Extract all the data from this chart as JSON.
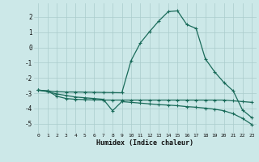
{
  "xlabel": "Humidex (Indice chaleur)",
  "xlim": [
    -0.5,
    23.5
  ],
  "ylim": [
    -5.6,
    2.9
  ],
  "yticks": [
    -5,
    -4,
    -3,
    -2,
    -1,
    0,
    1,
    2
  ],
  "xticks": [
    0,
    1,
    2,
    3,
    4,
    5,
    6,
    7,
    8,
    9,
    10,
    11,
    12,
    13,
    14,
    15,
    16,
    17,
    18,
    19,
    20,
    21,
    22,
    23
  ],
  "bg_color": "#cce8e8",
  "grid_color": "#aacccc",
  "line_color": "#1a6b5a",
  "line1_x": [
    0,
    1,
    2,
    3,
    4,
    5,
    6,
    7,
    8,
    9,
    10,
    11,
    12,
    13,
    14,
    15,
    16,
    17,
    18,
    19,
    20,
    21,
    22,
    23
  ],
  "line1_y": [
    -2.8,
    -2.9,
    -3.05,
    -3.15,
    -3.25,
    -3.3,
    -3.35,
    -3.4,
    -4.15,
    -3.55,
    -3.6,
    -3.65,
    -3.7,
    -3.75,
    -3.78,
    -3.82,
    -3.88,
    -3.92,
    -3.98,
    -4.05,
    -4.15,
    -4.35,
    -4.65,
    -5.05
  ],
  "line2_x": [
    0,
    1,
    2,
    3,
    4,
    5,
    6,
    7,
    8,
    9,
    10,
    11,
    12,
    13,
    14,
    15,
    16,
    17,
    18,
    19,
    20,
    21,
    22,
    23
  ],
  "line2_y": [
    -2.8,
    -2.85,
    -3.2,
    -3.35,
    -3.4,
    -3.42,
    -3.44,
    -3.45,
    -3.45,
    -3.45,
    -3.45,
    -3.45,
    -3.45,
    -3.45,
    -3.45,
    -3.45,
    -3.45,
    -3.45,
    -3.45,
    -3.45,
    -3.45,
    -3.5,
    -3.55,
    -3.6
  ],
  "line3_x": [
    0,
    1,
    2,
    3,
    4,
    5,
    6,
    7,
    8,
    9,
    10,
    11,
    12,
    13,
    14,
    15,
    16,
    17,
    18,
    19,
    20,
    21,
    22,
    23
  ],
  "line3_y": [
    -2.8,
    -2.85,
    -2.9,
    -2.92,
    -2.92,
    -2.93,
    -2.94,
    -2.95,
    -2.96,
    -2.97,
    -0.85,
    0.3,
    1.05,
    1.75,
    2.35,
    2.4,
    1.5,
    1.25,
    -0.75,
    -1.6,
    -2.3,
    -2.85,
    -4.1,
    -4.6
  ]
}
